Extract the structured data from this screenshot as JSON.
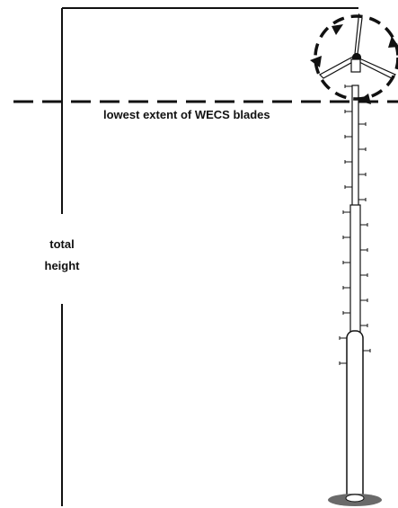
{
  "labels": {
    "blade_line": "lowest extent of WECS blades",
    "total_line1": "total",
    "total_line2": "height"
  },
  "colors": {
    "ink": "#111111",
    "background": "#ffffff",
    "ground": "#6a6a6a"
  }
}
